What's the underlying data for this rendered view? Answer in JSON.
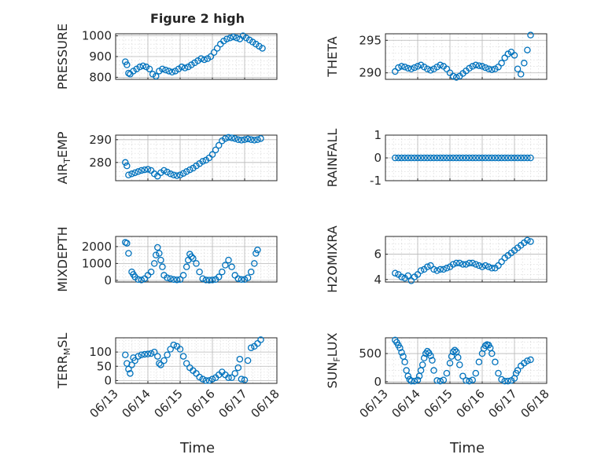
{
  "figure": {
    "title": "Figure 2 high",
    "xlabel": "Time",
    "x_tick_labels": [
      "06/13",
      "06/14",
      "06/15",
      "06/16",
      "06/17",
      "06/18"
    ],
    "marker_color": "#0072BD"
  },
  "chart_data": [
    {
      "type": "scatter",
      "ylabel": "PRESSURE",
      "ylabel_sub": "",
      "xlim": [
        0,
        5
      ],
      "ylim": [
        790,
        1010
      ],
      "yticks": [
        800,
        900,
        1000
      ],
      "x": [
        0.3,
        0.35,
        0.4,
        0.45,
        0.55,
        0.65,
        0.75,
        0.85,
        0.95,
        1.05,
        1.15,
        1.25,
        1.35,
        1.45,
        1.55,
        1.65,
        1.75,
        1.85,
        1.95,
        2.05,
        2.15,
        2.25,
        2.35,
        2.45,
        2.55,
        2.65,
        2.75,
        2.85,
        2.95,
        3.05,
        3.15,
        3.25,
        3.35,
        3.45,
        3.55,
        3.65,
        3.75,
        3.85,
        3.95,
        4.05,
        4.15,
        4.25,
        4.35,
        4.45,
        4.55
      ],
      "y": [
        875,
        860,
        820,
        815,
        830,
        840,
        850,
        855,
        850,
        840,
        815,
        805,
        830,
        840,
        835,
        830,
        825,
        830,
        840,
        850,
        845,
        850,
        860,
        870,
        880,
        890,
        885,
        890,
        900,
        920,
        940,
        960,
        975,
        985,
        990,
        995,
        990,
        985,
        1000,
        990,
        980,
        970,
        960,
        950,
        940
      ]
    },
    {
      "type": "scatter",
      "ylabel": "THETA",
      "ylabel_sub": "",
      "xlim": [
        0,
        5
      ],
      "ylim": [
        289,
        296
      ],
      "yticks": [
        290,
        295
      ],
      "x": [
        0.3,
        0.4,
        0.5,
        0.6,
        0.7,
        0.8,
        0.9,
        1.0,
        1.1,
        1.2,
        1.3,
        1.4,
        1.5,
        1.6,
        1.7,
        1.8,
        1.9,
        2.0,
        2.1,
        2.2,
        2.3,
        2.4,
        2.5,
        2.6,
        2.7,
        2.8,
        2.9,
        3.0,
        3.1,
        3.2,
        3.3,
        3.4,
        3.5,
        3.6,
        3.7,
        3.8,
        3.9,
        4.0,
        4.1,
        4.2,
        4.3,
        4.4,
        4.5
      ],
      "y": [
        290.2,
        290.8,
        291.0,
        290.9,
        290.7,
        290.6,
        290.8,
        291.0,
        291.2,
        290.9,
        290.6,
        290.4,
        290.6,
        290.9,
        291.2,
        291.0,
        290.6,
        290.0,
        289.5,
        289.3,
        289.5,
        289.9,
        290.3,
        290.7,
        291.0,
        291.2,
        291.1,
        291.0,
        290.8,
        290.6,
        290.5,
        290.6,
        290.9,
        291.5,
        292.3,
        292.9,
        293.2,
        292.7,
        290.6,
        289.8,
        291.5,
        293.5,
        295.8
      ]
    },
    {
      "type": "scatter",
      "ylabel": "AIR",
      "ylabel_sub": "T",
      "ylabel_rest": "EMP",
      "xlim": [
        0,
        5
      ],
      "ylim": [
        272,
        292
      ],
      "yticks": [
        280,
        290
      ],
      "x": [
        0.3,
        0.35,
        0.4,
        0.5,
        0.6,
        0.7,
        0.8,
        0.9,
        1.0,
        1.1,
        1.2,
        1.3,
        1.4,
        1.5,
        1.6,
        1.7,
        1.8,
        1.9,
        2.0,
        2.1,
        2.2,
        2.3,
        2.4,
        2.5,
        2.6,
        2.7,
        2.8,
        2.9,
        3.0,
        3.1,
        3.2,
        3.3,
        3.4,
        3.5,
        3.6,
        3.7,
        3.8,
        3.9,
        4.0,
        4.1,
        4.2,
        4.3,
        4.4,
        4.5
      ],
      "y": [
        280,
        278.5,
        274.5,
        275,
        275.5,
        276,
        276.5,
        276.8,
        277,
        276.5,
        275,
        274,
        275.5,
        276.5,
        275.8,
        275,
        274.5,
        274.2,
        274.5,
        275.2,
        276,
        276.8,
        277.5,
        278.5,
        279.5,
        280.5,
        281,
        282,
        283.5,
        285.5,
        287.5,
        289.5,
        290.5,
        291,
        290.8,
        290.5,
        290,
        289.8,
        290,
        290.3,
        290,
        289.8,
        290,
        290.5
      ]
    },
    {
      "type": "scatter",
      "ylabel": "RAINFALL",
      "ylabel_sub": "",
      "xlim": [
        0,
        5
      ],
      "ylim": [
        -1,
        1
      ],
      "yticks": [
        -1,
        0,
        1
      ],
      "x": [
        0.3,
        0.4,
        0.5,
        0.6,
        0.7,
        0.8,
        0.9,
        1.0,
        1.1,
        1.2,
        1.3,
        1.4,
        1.5,
        1.6,
        1.7,
        1.8,
        1.9,
        2.0,
        2.1,
        2.2,
        2.3,
        2.4,
        2.5,
        2.6,
        2.7,
        2.8,
        2.9,
        3.0,
        3.1,
        3.2,
        3.3,
        3.4,
        3.5,
        3.6,
        3.7,
        3.8,
        3.9,
        4.0,
        4.1,
        4.2,
        4.3,
        4.4,
        4.5
      ],
      "y": [
        0,
        0,
        0,
        0,
        0,
        0,
        0,
        0,
        0,
        0,
        0,
        0,
        0,
        0,
        0,
        0,
        0,
        0,
        0,
        0,
        0,
        0,
        0,
        0,
        0,
        0,
        0,
        0,
        0,
        0,
        0,
        0,
        0,
        0,
        0,
        0,
        0,
        0,
        0,
        0,
        0,
        0,
        0
      ]
    },
    {
      "type": "scatter",
      "ylabel": "MIXDEPTH",
      "ylabel_sub": "",
      "xlim": [
        0,
        5
      ],
      "ylim": [
        -100,
        2600
      ],
      "yticks": [
        0,
        1000,
        2000
      ],
      "x": [
        0.3,
        0.35,
        0.4,
        0.5,
        0.55,
        0.6,
        0.7,
        0.8,
        0.9,
        1.0,
        1.1,
        1.2,
        1.25,
        1.3,
        1.35,
        1.4,
        1.45,
        1.5,
        1.6,
        1.7,
        1.8,
        1.9,
        2.0,
        2.1,
        2.2,
        2.25,
        2.3,
        2.35,
        2.4,
        2.5,
        2.6,
        2.7,
        2.8,
        2.9,
        3.0,
        3.1,
        3.2,
        3.3,
        3.4,
        3.5,
        3.6,
        3.7,
        3.8,
        3.9,
        4.0,
        4.1,
        4.2,
        4.3,
        4.35,
        4.4
      ],
      "y": [
        2250,
        2200,
        1600,
        500,
        350,
        200,
        50,
        20,
        100,
        300,
        500,
        1000,
        1500,
        1950,
        1600,
        1200,
        800,
        300,
        150,
        100,
        50,
        30,
        50,
        300,
        800,
        1200,
        1550,
        1400,
        1300,
        1000,
        500,
        100,
        20,
        10,
        20,
        50,
        200,
        500,
        900,
        1200,
        800,
        300,
        100,
        50,
        50,
        150,
        500,
        1000,
        1600,
        1800
      ]
    },
    {
      "type": "scatter",
      "ylabel": "H2OMIXRA",
      "ylabel_sub": "",
      "xlim": [
        0,
        5
      ],
      "ylim": [
        3.8,
        7.4
      ],
      "yticks": [
        4,
        6
      ],
      "x": [
        0.3,
        0.4,
        0.5,
        0.6,
        0.7,
        0.8,
        0.9,
        1.0,
        1.1,
        1.2,
        1.3,
        1.4,
        1.5,
        1.6,
        1.7,
        1.8,
        1.9,
        2.0,
        2.1,
        2.2,
        2.3,
        2.4,
        2.5,
        2.6,
        2.7,
        2.8,
        2.9,
        3.0,
        3.1,
        3.2,
        3.3,
        3.4,
        3.5,
        3.6,
        3.7,
        3.8,
        3.9,
        4.0,
        4.1,
        4.2,
        4.3,
        4.4,
        4.5
      ],
      "y": [
        4.5,
        4.4,
        4.2,
        4.1,
        4.3,
        3.9,
        4.2,
        4.4,
        4.7,
        4.8,
        5.0,
        5.1,
        4.8,
        4.7,
        4.8,
        4.8,
        4.9,
        5.0,
        5.2,
        5.3,
        5.3,
        5.2,
        5.2,
        5.3,
        5.3,
        5.2,
        5.1,
        5.0,
        5.1,
        5.0,
        4.9,
        4.9,
        5.1,
        5.4,
        5.7,
        5.9,
        6.1,
        6.3,
        6.5,
        6.7,
        6.9,
        7.1,
        7.0
      ]
    },
    {
      "type": "scatter",
      "ylabel": "TERR",
      "ylabel_sub": "M",
      "ylabel_rest": "SL",
      "xlim": [
        0,
        5
      ],
      "ylim": [
        -10,
        150
      ],
      "yticks": [
        0,
        50,
        100
      ],
      "x": [
        0.3,
        0.35,
        0.4,
        0.45,
        0.5,
        0.55,
        0.6,
        0.7,
        0.8,
        0.9,
        1.0,
        1.1,
        1.2,
        1.3,
        1.35,
        1.4,
        1.5,
        1.6,
        1.7,
        1.8,
        1.9,
        2.0,
        2.1,
        2.2,
        2.3,
        2.4,
        2.5,
        2.6,
        2.7,
        2.8,
        2.9,
        3.0,
        3.1,
        3.2,
        3.3,
        3.4,
        3.5,
        3.6,
        3.7,
        3.8,
        3.85,
        3.9,
        4.0,
        4.1,
        4.2,
        4.3,
        4.4,
        4.5
      ],
      "y": [
        90,
        60,
        40,
        25,
        55,
        80,
        70,
        85,
        90,
        92,
        93,
        95,
        100,
        85,
        60,
        55,
        70,
        90,
        110,
        125,
        120,
        110,
        85,
        60,
        45,
        35,
        25,
        12,
        5,
        0,
        0,
        5,
        10,
        20,
        30,
        20,
        10,
        10,
        25,
        45,
        75,
        5,
        2,
        70,
        115,
        120,
        130,
        143
      ]
    },
    {
      "type": "scatter",
      "ylabel": "SUN",
      "ylabel_sub": "F",
      "ylabel_rest": "LUX",
      "xlim": [
        0,
        5
      ],
      "ylim": [
        -30,
        780
      ],
      "yticks": [
        0,
        500
      ],
      "x": [
        0.3,
        0.35,
        0.4,
        0.45,
        0.5,
        0.55,
        0.6,
        0.65,
        0.7,
        0.75,
        0.8,
        0.9,
        1.0,
        1.05,
        1.1,
        1.15,
        1.2,
        1.25,
        1.3,
        1.35,
        1.4,
        1.45,
        1.5,
        1.6,
        1.7,
        1.8,
        1.9,
        2.0,
        2.05,
        2.1,
        2.15,
        2.2,
        2.25,
        2.3,
        2.4,
        2.5,
        2.6,
        2.7,
        2.8,
        2.9,
        3.0,
        3.05,
        3.1,
        3.15,
        3.2,
        3.25,
        3.3,
        3.4,
        3.5,
        3.6,
        3.7,
        3.8,
        3.9,
        4.0,
        4.05,
        4.1,
        4.2,
        4.3,
        4.4,
        4.5
      ],
      "y": [
        740,
        700,
        650,
        600,
        520,
        450,
        350,
        200,
        100,
        40,
        10,
        10,
        30,
        100,
        200,
        300,
        420,
        500,
        540,
        510,
        460,
        380,
        200,
        20,
        10,
        30,
        150,
        330,
        450,
        530,
        560,
        530,
        430,
        300,
        100,
        20,
        10,
        30,
        150,
        350,
        500,
        590,
        640,
        660,
        650,
        600,
        500,
        350,
        150,
        40,
        10,
        10,
        20,
        60,
        150,
        200,
        280,
        330,
        370,
        390
      ]
    }
  ]
}
